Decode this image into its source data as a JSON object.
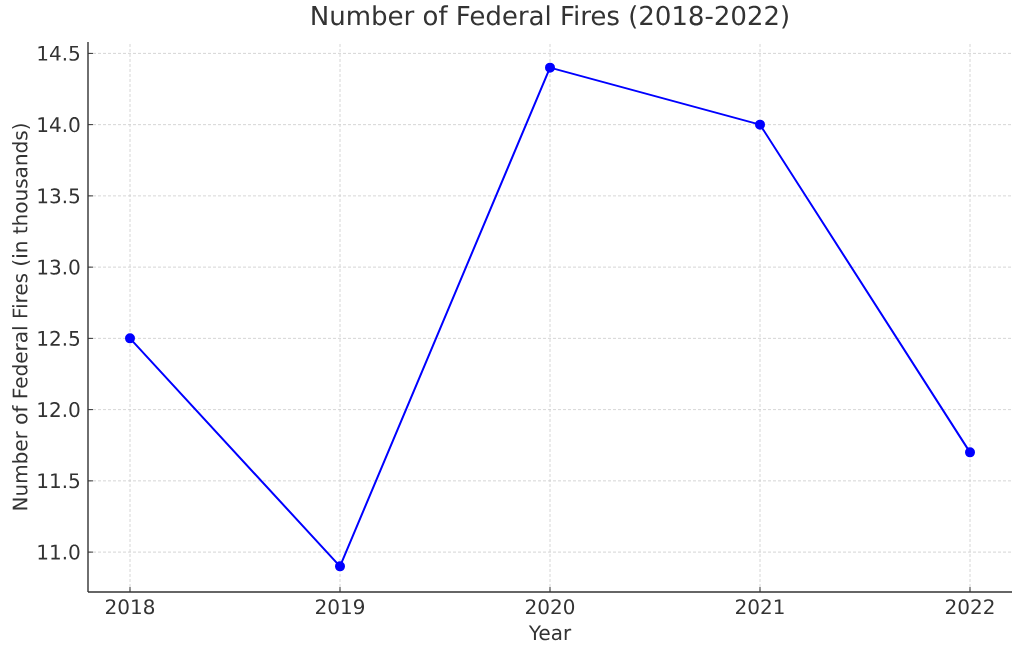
{
  "chart_data": {
    "type": "line",
    "title": "Number of Federal Fires (2018-2022)",
    "xlabel": "Year",
    "ylabel": "Number of Federal Fires (in thousands)",
    "x": [
      2018,
      2019,
      2020,
      2021,
      2022
    ],
    "series": [
      {
        "color": "#0000ff",
        "values": [
          12.5,
          10.9,
          14.4,
          14.0,
          11.7
        ]
      }
    ],
    "xlim": [
      2017.8,
      2022.2
    ],
    "ylim": [
      10.72,
      14.58
    ],
    "xticks": [
      2018,
      2019,
      2020,
      2021,
      2022
    ],
    "yticks": [
      {
        "value": 11.0,
        "label": "11.0"
      },
      11.5,
      {
        "value": 12.0,
        "label": "12.0"
      },
      12.5,
      {
        "value": 13.0,
        "label": "13.0"
      },
      13.5,
      {
        "value": 14.0,
        "label": "14.0"
      },
      14.5
    ],
    "grid": true,
    "marker": "circle",
    "line_style": "solid"
  }
}
